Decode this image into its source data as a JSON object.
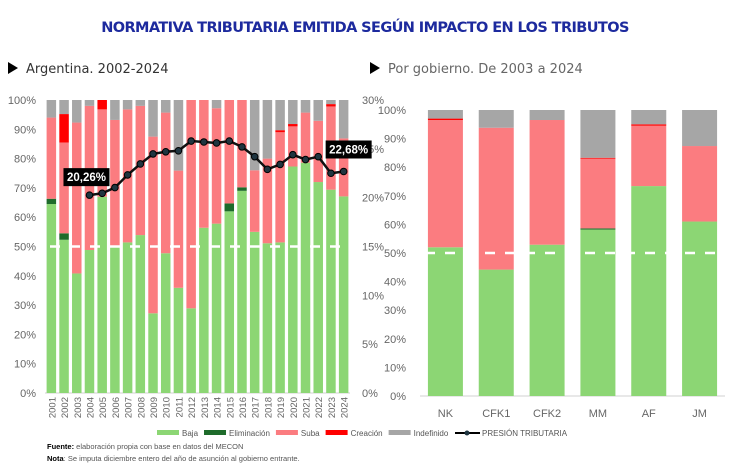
{
  "title": "NORMATIVA TRIBUTARIA EMITIDA SEGÚN IMPACTO EN LOS TRIBUTOS",
  "colors": {
    "Baja": "#8cd674",
    "Eliminación": "#1e6b2b",
    "Suba": "#fb7c80",
    "Creación": "#ff0000",
    "Indefinido": "#a6a6a6",
    "line": "#111111",
    "title": "#1d2a9e"
  },
  "legend": [
    "Baja",
    "Eliminación",
    "Suba",
    "Creación",
    "Indefinido"
  ],
  "line_legend": "PRESIÓN TRIBUTARIA",
  "footnotes": {
    "source_label": "Fuente:",
    "source": " elaboración propia con base en datos del MECON",
    "note_label": "Nota",
    "note": ": Se imputa diciembre entero del año de asunción al gobierno entrante."
  },
  "chart_data": [
    {
      "type": "bar",
      "stacked": true,
      "subtitle": "Argentina. 2002-2024",
      "categories": [
        "2001",
        "2002",
        "2003",
        "2004",
        "2005",
        "2006",
        "2007",
        "2008",
        "2009",
        "2010",
        "2011",
        "2012",
        "2013",
        "2014",
        "2015",
        "2016",
        "2017",
        "2018",
        "2019",
        "2020",
        "2021",
        "2022",
        "2023",
        "2024"
      ],
      "ylim": [
        0,
        100
      ],
      "yticks": [
        "0%",
        "10%",
        "20%",
        "30%",
        "40%",
        "50%",
        "60%",
        "70%",
        "80%",
        "90%",
        "100%"
      ],
      "y2lim": [
        0,
        30
      ],
      "y2ticks": [
        "0%",
        "5%",
        "10%",
        "15%",
        "20%",
        "25%",
        "30%"
      ],
      "reference_line": 50,
      "series": [
        {
          "name": "Baja",
          "values": [
            64.5,
            52.3,
            40.8,
            48.8,
            67,
            49.7,
            51.4,
            53.9,
            27.2,
            47.7,
            35.9,
            28.9,
            56.4,
            57.8,
            62,
            69,
            55,
            51.1,
            51.4,
            77.3,
            78.6,
            72,
            69.4,
            67.1
          ]
        },
        {
          "name": "Eliminación",
          "values": [
            1.8,
            2.2,
            0,
            0,
            0,
            0,
            0,
            0,
            0,
            0,
            0,
            0,
            0,
            0,
            2.7,
            1.2,
            0,
            0,
            0,
            0,
            0,
            0,
            0,
            0
          ]
        },
        {
          "name": "Suba",
          "values": [
            27.7,
            31,
            51.5,
            49.2,
            29.8,
            43.5,
            45.4,
            44.1,
            60.3,
            48,
            40,
            71.1,
            43.6,
            39.4,
            35.3,
            29.8,
            21,
            28.9,
            37.6,
            13.7,
            17.1,
            20.9,
            28.4,
            19.8
          ]
        },
        {
          "name": "Creación",
          "values": [
            0,
            9.7,
            0,
            0,
            3.2,
            0,
            0,
            0,
            0,
            0,
            0,
            0,
            0,
            0,
            0,
            0,
            0,
            0,
            0.7,
            0.8,
            0,
            0,
            0.8,
            0
          ]
        },
        {
          "name": "Indefinido",
          "values": [
            6,
            4.8,
            7.7,
            2,
            0,
            6.8,
            3.2,
            2,
            12.5,
            4.3,
            24.1,
            0,
            0,
            2.8,
            0,
            0,
            24,
            20,
            10.3,
            8.2,
            4.3,
            7.1,
            1.4,
            13.1
          ]
        }
      ],
      "line": {
        "name": "PRESIÓN TRIBUTARIA",
        "axis": "secondary",
        "values": [
          null,
          null,
          null,
          20.26,
          20.45,
          21.03,
          22.33,
          23.45,
          24.48,
          24.7,
          24.8,
          25.8,
          25.7,
          25.6,
          25.8,
          25.2,
          24.2,
          22.9,
          23.4,
          24.4,
          23.9,
          24.2,
          22.5,
          22.68
        ]
      },
      "data_labels": [
        {
          "category": "2004",
          "text": "20,26%"
        },
        {
          "category": "2024",
          "text": "22,68%"
        }
      ]
    },
    {
      "type": "bar",
      "stacked": true,
      "subtitle": "Por gobierno. De 2003 a 2024",
      "categories": [
        "NK",
        "CFK1",
        "CFK2",
        "MM",
        "AF",
        "JM"
      ],
      "ylim": [
        0,
        100
      ],
      "yticks": [
        "0%",
        "10%",
        "20%",
        "30%",
        "40%",
        "50%",
        "60%",
        "70%",
        "80%",
        "90%",
        "100%"
      ],
      "reference_line": 50,
      "series": [
        {
          "name": "Baja",
          "values": [
            52,
            44.2,
            52.9,
            58.2,
            73.4,
            61
          ]
        },
        {
          "name": "Eliminación",
          "values": [
            0,
            0,
            0,
            0.4,
            0,
            0
          ]
        },
        {
          "name": "Suba",
          "values": [
            44.5,
            49.6,
            43.6,
            24.4,
            21.1,
            26.4
          ]
        },
        {
          "name": "Creación",
          "values": [
            0.5,
            0,
            0,
            0.3,
            0.5,
            0
          ]
        },
        {
          "name": "Indefinido",
          "values": [
            3,
            6.2,
            3.5,
            16.7,
            5,
            12.6
          ]
        }
      ]
    }
  ]
}
